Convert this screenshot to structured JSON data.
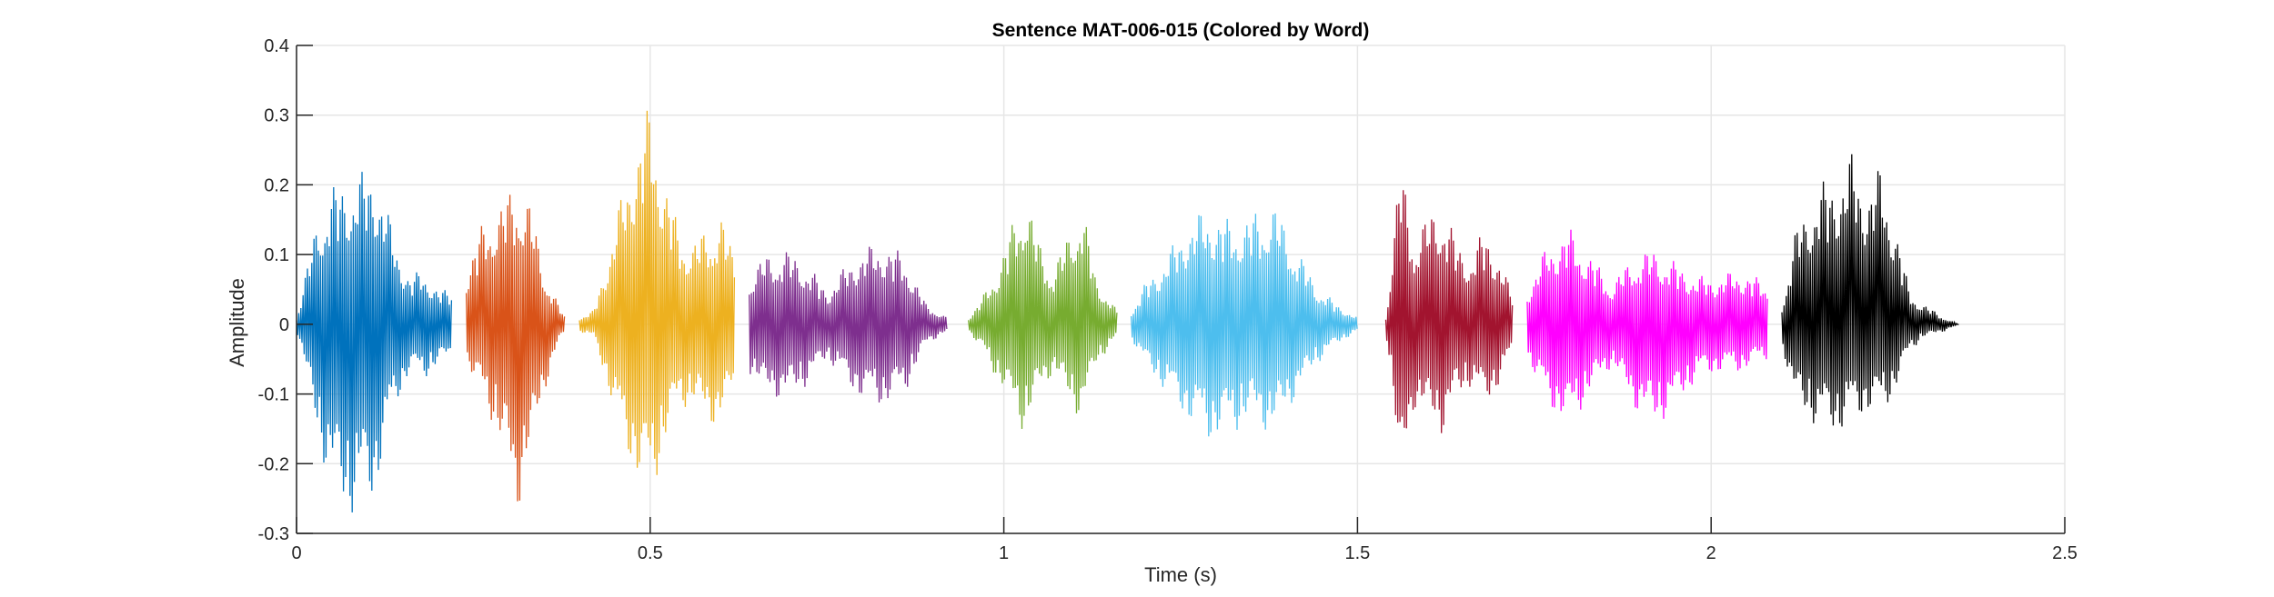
{
  "chart_data": {
    "type": "line",
    "title": "Sentence MAT-006-015 (Colored by Word)",
    "xlabel": "Time (s)",
    "ylabel": "Amplitude",
    "xlim": [
      0,
      2.5
    ],
    "ylim": [
      -0.3,
      0.4
    ],
    "xticks": [
      0,
      0.5,
      1,
      1.5,
      2,
      2.5
    ],
    "xtick_labels": [
      "0",
      "0.5",
      "1",
      "1.5",
      "2",
      "2.5"
    ],
    "yticks": [
      -0.3,
      -0.2,
      -0.1,
      0,
      0.1,
      0.2,
      0.3,
      0.4
    ],
    "ytick_labels": [
      "-0.3",
      "-0.2",
      "-0.1",
      "0",
      "0.1",
      "0.2",
      "0.3",
      "0.4"
    ],
    "grid": true,
    "series": [
      {
        "color": "#0072BD",
        "start": 0.0,
        "end": 0.22,
        "envelope": [
          [
            0.0,
            0.01,
            -0.01
          ],
          [
            0.01,
            0.06,
            -0.05
          ],
          [
            0.03,
            0.16,
            -0.17
          ],
          [
            0.05,
            0.2,
            -0.24
          ],
          [
            0.07,
            0.21,
            -0.28
          ],
          [
            0.09,
            0.22,
            -0.27
          ],
          [
            0.11,
            0.23,
            -0.26
          ],
          [
            0.12,
            0.2,
            -0.2
          ],
          [
            0.14,
            0.12,
            -0.12
          ],
          [
            0.16,
            0.07,
            -0.07
          ],
          [
            0.18,
            0.08,
            -0.08
          ],
          [
            0.2,
            0.05,
            -0.06
          ],
          [
            0.22,
            0.05,
            -0.05
          ]
        ]
      },
      {
        "color": "#D95319",
        "start": 0.24,
        "end": 0.38,
        "envelope": [
          [
            0.24,
            0.08,
            -0.06
          ],
          [
            0.26,
            0.14,
            -0.1
          ],
          [
            0.28,
            0.17,
            -0.15
          ],
          [
            0.3,
            0.19,
            -0.22
          ],
          [
            0.31,
            0.21,
            -0.28
          ],
          [
            0.33,
            0.18,
            -0.2
          ],
          [
            0.35,
            0.08,
            -0.1
          ],
          [
            0.37,
            0.03,
            -0.03
          ],
          [
            0.38,
            0.01,
            -0.01
          ]
        ]
      },
      {
        "color": "#EDB120",
        "start": 0.4,
        "end": 0.62,
        "envelope": [
          [
            0.4,
            0.01,
            -0.01
          ],
          [
            0.42,
            0.02,
            -0.02
          ],
          [
            0.44,
            0.1,
            -0.09
          ],
          [
            0.46,
            0.19,
            -0.17
          ],
          [
            0.48,
            0.27,
            -0.22
          ],
          [
            0.5,
            0.32,
            -0.26
          ],
          [
            0.52,
            0.22,
            -0.18
          ],
          [
            0.54,
            0.14,
            -0.12
          ],
          [
            0.56,
            0.12,
            -0.12
          ],
          [
            0.58,
            0.14,
            -0.14
          ],
          [
            0.6,
            0.16,
            -0.15
          ],
          [
            0.62,
            0.1,
            -0.08
          ]
        ]
      },
      {
        "color": "#7E2F8E",
        "start": 0.64,
        "end": 0.92,
        "envelope": [
          [
            0.64,
            0.07,
            -0.07
          ],
          [
            0.66,
            0.1,
            -0.1
          ],
          [
            0.69,
            0.11,
            -0.11
          ],
          [
            0.72,
            0.09,
            -0.09
          ],
          [
            0.75,
            0.05,
            -0.05
          ],
          [
            0.78,
            0.09,
            -0.09
          ],
          [
            0.8,
            0.11,
            -0.11
          ],
          [
            0.83,
            0.12,
            -0.12
          ],
          [
            0.86,
            0.1,
            -0.1
          ],
          [
            0.89,
            0.03,
            -0.03
          ],
          [
            0.92,
            0.01,
            -0.01
          ]
        ]
      },
      {
        "color": "#77AC30",
        "start": 0.95,
        "end": 1.16,
        "envelope": [
          [
            0.95,
            0.01,
            -0.01
          ],
          [
            0.97,
            0.04,
            -0.04
          ],
          [
            0.99,
            0.08,
            -0.08
          ],
          [
            1.01,
            0.14,
            -0.12
          ],
          [
            1.03,
            0.2,
            -0.16
          ],
          [
            1.05,
            0.12,
            -0.1
          ],
          [
            1.07,
            0.08,
            -0.07
          ],
          [
            1.09,
            0.13,
            -0.11
          ],
          [
            1.11,
            0.18,
            -0.14
          ],
          [
            1.13,
            0.07,
            -0.06
          ],
          [
            1.16,
            0.02,
            -0.02
          ]
        ]
      },
      {
        "color": "#4DBEEE",
        "start": 1.18,
        "end": 1.5,
        "envelope": [
          [
            1.18,
            0.02,
            -0.02
          ],
          [
            1.2,
            0.06,
            -0.06
          ],
          [
            1.23,
            0.1,
            -0.1
          ],
          [
            1.26,
            0.15,
            -0.14
          ],
          [
            1.29,
            0.17,
            -0.17
          ],
          [
            1.32,
            0.15,
            -0.16
          ],
          [
            1.35,
            0.16,
            -0.14
          ],
          [
            1.38,
            0.18,
            -0.16
          ],
          [
            1.41,
            0.12,
            -0.11
          ],
          [
            1.44,
            0.06,
            -0.06
          ],
          [
            1.47,
            0.03,
            -0.03
          ],
          [
            1.5,
            0.01,
            -0.01
          ]
        ]
      },
      {
        "color": "#A2142F",
        "start": 1.54,
        "end": 1.72,
        "envelope": [
          [
            1.54,
            0.01,
            -0.01
          ],
          [
            1.55,
            0.12,
            -0.1
          ],
          [
            1.56,
            0.24,
            -0.25
          ],
          [
            1.58,
            0.13,
            -0.12
          ],
          [
            1.6,
            0.16,
            -0.14
          ],
          [
            1.62,
            0.18,
            -0.16
          ],
          [
            1.64,
            0.12,
            -0.11
          ],
          [
            1.66,
            0.1,
            -0.09
          ],
          [
            1.68,
            0.14,
            -0.12
          ],
          [
            1.7,
            0.1,
            -0.09
          ],
          [
            1.72,
            0.04,
            -0.04
          ]
        ]
      },
      {
        "color": "#FF00FF",
        "start": 1.74,
        "end": 2.08,
        "envelope": [
          [
            1.74,
            0.05,
            -0.05
          ],
          [
            1.77,
            0.12,
            -0.12
          ],
          [
            1.8,
            0.14,
            -0.15
          ],
          [
            1.83,
            0.1,
            -0.1
          ],
          [
            1.86,
            0.06,
            -0.06
          ],
          [
            1.89,
            0.1,
            -0.12
          ],
          [
            1.92,
            0.11,
            -0.15
          ],
          [
            1.95,
            0.09,
            -0.12
          ],
          [
            1.98,
            0.07,
            -0.08
          ],
          [
            2.01,
            0.07,
            -0.07
          ],
          [
            2.04,
            0.08,
            -0.07
          ],
          [
            2.08,
            0.06,
            -0.05
          ]
        ]
      },
      {
        "color": "#000000",
        "start": 2.1,
        "end": 2.35,
        "envelope": [
          [
            2.1,
            0.03,
            -0.03
          ],
          [
            2.12,
            0.14,
            -0.12
          ],
          [
            2.15,
            0.2,
            -0.15
          ],
          [
            2.18,
            0.22,
            -0.16
          ],
          [
            2.2,
            0.25,
            -0.14
          ],
          [
            2.22,
            0.2,
            -0.13
          ],
          [
            2.24,
            0.23,
            -0.13
          ],
          [
            2.26,
            0.15,
            -0.1
          ],
          [
            2.28,
            0.05,
            -0.04
          ],
          [
            2.3,
            0.03,
            -0.02
          ],
          [
            2.33,
            0.01,
            -0.01
          ],
          [
            2.35,
            0.0,
            0.0
          ]
        ]
      }
    ]
  },
  "colors": {
    "axis": "#262626",
    "grid": "#e6e6e6",
    "background": "#ffffff"
  }
}
